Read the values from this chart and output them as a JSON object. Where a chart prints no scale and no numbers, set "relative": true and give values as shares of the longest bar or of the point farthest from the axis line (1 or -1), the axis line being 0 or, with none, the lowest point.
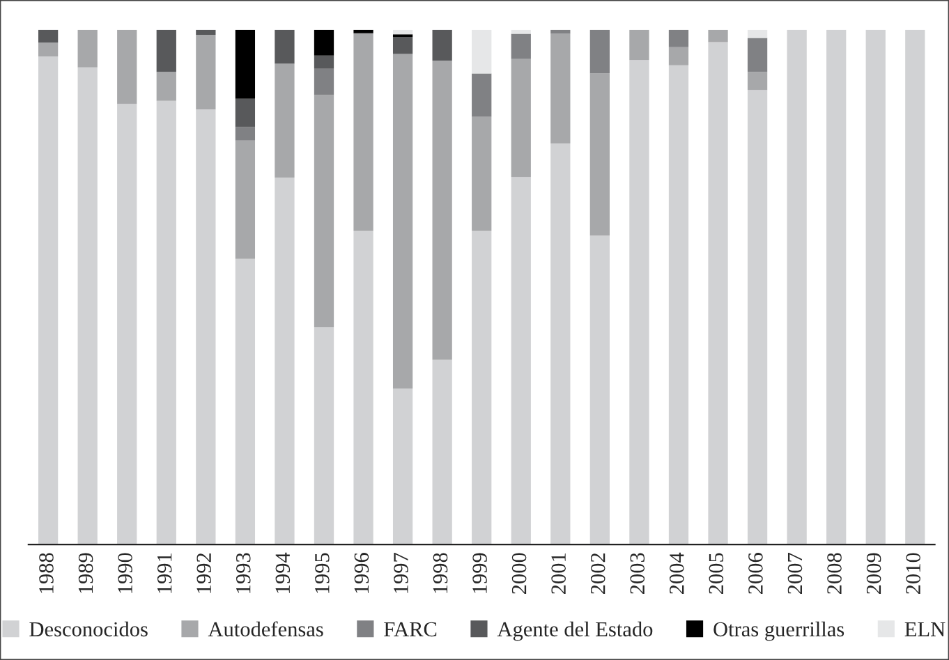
{
  "chart_data": {
    "type": "bar",
    "stacked": true,
    "relative": true,
    "legend": "bottom",
    "grid": false,
    "categories": [
      "1988",
      "1989",
      "1990",
      "1991",
      "1992",
      "1993",
      "1994",
      "1995",
      "1996",
      "1997",
      "1998",
      "1999",
      "2000",
      "2001",
      "2002",
      "2003",
      "2004",
      "2005",
      "2006",
      "2007",
      "2008",
      "2009",
      "2010"
    ],
    "series": [
      {
        "name": "Desconocidos",
        "color": "#d1d2d4",
        "values": [
          0.948,
          0.927,
          0.856,
          0.862,
          0.845,
          0.555,
          0.713,
          0.422,
          0.609,
          0.303,
          0.359,
          0.609,
          0.714,
          0.779,
          0.6,
          0.941,
          0.931,
          0.976,
          0.883,
          1,
          1,
          1,
          1
        ]
      },
      {
        "name": "Autodefensas",
        "color": "#a7a8aa",
        "values": [
          0.027,
          0.073,
          0.144,
          0.056,
          0.145,
          0.23,
          0.221,
          0.451,
          0.384,
          0.65,
          0.581,
          0.222,
          0.229,
          0.213,
          0.315,
          0.059,
          0.035,
          0.024,
          0.035,
          0,
          0,
          0,
          0
        ]
      },
      {
        "name": "FARC",
        "color": "#808184",
        "values": [
          0,
          0,
          0,
          0,
          0,
          0.026,
          0,
          0.051,
          0,
          0,
          0,
          0.084,
          0.049,
          0.008,
          0.085,
          0,
          0.034,
          0,
          0.066,
          0,
          0,
          0,
          0
        ]
      },
      {
        "name": "Agente del Estado",
        "color": "#58595b",
        "values": [
          0.025,
          0,
          0,
          0.082,
          0.01,
          0.055,
          0.066,
          0.026,
          0,
          0.033,
          0.06,
          0,
          0,
          0,
          0,
          0,
          0,
          0,
          0,
          0,
          0,
          0,
          0
        ]
      },
      {
        "name": "Otras guerrillas",
        "color": "#000000",
        "values": [
          0,
          0,
          0,
          0,
          0,
          0.134,
          0,
          0.05,
          0.007,
          0.005,
          0,
          0,
          0,
          0,
          0,
          0,
          0,
          0,
          0,
          0,
          0,
          0,
          0
        ]
      },
      {
        "name": "ELN",
        "color": "#e6e7e8",
        "values": [
          0,
          0,
          0,
          0,
          0,
          0,
          0,
          0,
          0,
          0.009,
          0,
          0.085,
          0.008,
          0,
          0,
          0,
          0,
          0,
          0.016,
          0,
          0,
          0,
          0
        ]
      }
    ]
  }
}
